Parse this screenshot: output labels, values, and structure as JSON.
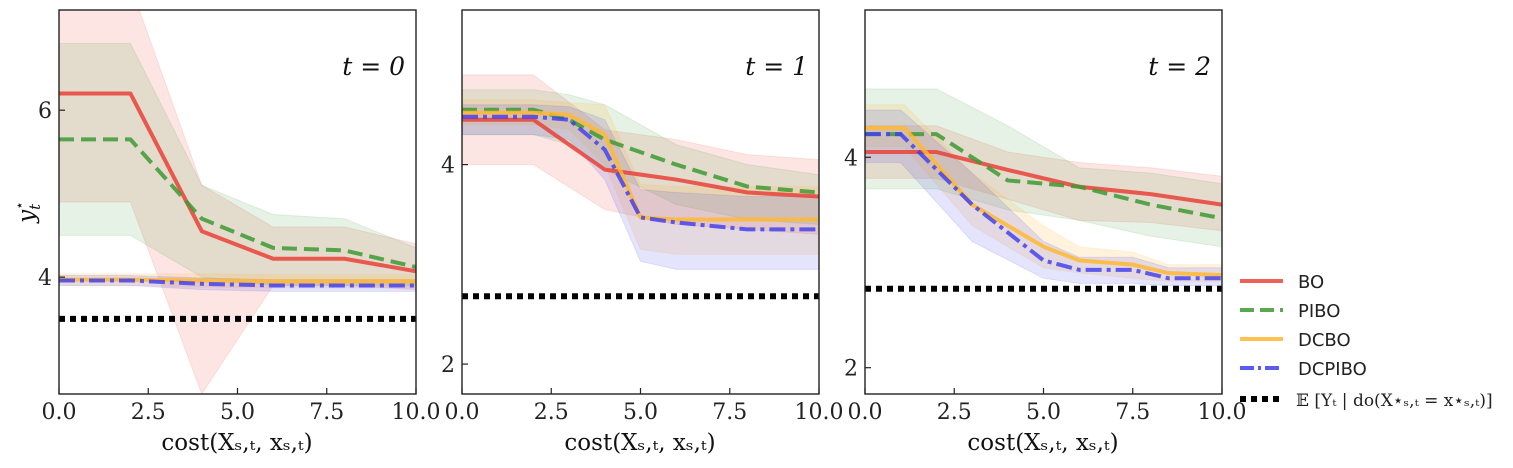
{
  "figure": {
    "ylabel_base": "y",
    "ylabel_sub": "t",
    "ylabel_sup": "⋆"
  },
  "colors": {
    "BO": "#e8463c",
    "PIBO": "#3d9a33",
    "DCBO": "#ffb732",
    "DCPIBO": "#3f3dee",
    "target": "#000000"
  },
  "legend": {
    "placement": "right",
    "entries": [
      {
        "name": "BO",
        "label": "BO",
        "style": "solid"
      },
      {
        "name": "PIBO",
        "label": "PIBO",
        "style": "dashed"
      },
      {
        "name": "DCBO",
        "label": "DCBO",
        "style": "solid"
      },
      {
        "name": "DCPIBO",
        "label": "DCPIBO",
        "style": "dashdot"
      },
      {
        "name": "target",
        "label": "𝔼 [Yₜ | do(X⋆ₛ,ₜ = x⋆ₛ,ₜ)]",
        "style": "dotted"
      }
    ]
  },
  "chart_data": [
    {
      "type": "line",
      "title": "t = 0",
      "xlabel": "cost(Xₛ,ₜ, xₛ,ₜ)",
      "ylabel": "yₜ⋆",
      "xlim": [
        0,
        10
      ],
      "ylim": [
        2.6,
        7.2
      ],
      "xticks": [
        0,
        2.5,
        5,
        7.5,
        10
      ],
      "xtick_labels": [
        "0.0",
        "2.5",
        "5.0",
        "7.5",
        "10.0"
      ],
      "yticks": [
        4,
        6
      ],
      "ytick_labels": [
        "4",
        "6"
      ],
      "grid": false,
      "target": 3.5,
      "series": [
        {
          "name": "BO",
          "x": [
            0,
            2,
            4,
            6,
            8,
            10
          ],
          "y": [
            6.2,
            6.2,
            4.55,
            4.22,
            4.22,
            4.07
          ],
          "lo": [
            4.9,
            4.9,
            2.6,
            3.9,
            3.9,
            3.85
          ],
          "hi": [
            7.5,
            7.5,
            5.1,
            4.6,
            4.6,
            4.4
          ]
        },
        {
          "name": "PIBO",
          "x": [
            0,
            2,
            4,
            6,
            8,
            10
          ],
          "y": [
            5.65,
            5.65,
            4.7,
            4.35,
            4.32,
            4.12
          ],
          "lo": [
            4.5,
            4.5,
            4.0,
            3.9,
            3.9,
            3.9
          ],
          "hi": [
            6.8,
            6.8,
            5.1,
            4.75,
            4.7,
            4.35
          ]
        },
        {
          "name": "DCBO",
          "x": [
            0,
            2,
            4,
            6,
            8,
            10
          ],
          "y": [
            3.97,
            3.97,
            3.96,
            3.95,
            3.95,
            3.95
          ],
          "lo": [
            3.9,
            3.9,
            3.88,
            3.87,
            3.87,
            3.87
          ],
          "hi": [
            4.04,
            4.04,
            4.04,
            4.03,
            4.03,
            4.03
          ]
        },
        {
          "name": "DCPIBO",
          "x": [
            0,
            2,
            4,
            6,
            8,
            10
          ],
          "y": [
            3.96,
            3.96,
            3.92,
            3.9,
            3.9,
            3.9
          ],
          "lo": [
            3.9,
            3.9,
            3.85,
            3.83,
            3.83,
            3.83
          ],
          "hi": [
            4.02,
            4.02,
            3.99,
            3.97,
            3.97,
            3.97
          ]
        }
      ]
    },
    {
      "type": "line",
      "title": "t = 1",
      "xlabel": "cost(Xₛ,ₜ, xₛ,ₜ)",
      "ylabel": "",
      "xlim": [
        0,
        10
      ],
      "ylim": [
        1.7,
        5.55
      ],
      "xticks": [
        0,
        2.5,
        5,
        7.5,
        10
      ],
      "xtick_labels": [
        "0.0",
        "2.5",
        "5.0",
        "7.5",
        "10.0"
      ],
      "yticks": [
        2,
        4
      ],
      "ytick_labels": [
        "2",
        "4"
      ],
      "grid": false,
      "target": 2.68,
      "series": [
        {
          "name": "BO",
          "x": [
            0,
            2,
            4,
            6,
            8,
            10
          ],
          "y": [
            4.45,
            4.45,
            3.95,
            3.85,
            3.72,
            3.68
          ],
          "lo": [
            4.0,
            4.0,
            3.55,
            3.4,
            3.35,
            3.3
          ],
          "hi": [
            4.9,
            4.9,
            4.35,
            4.25,
            4.1,
            4.05
          ]
        },
        {
          "name": "PIBO",
          "x": [
            0,
            2,
            3,
            4,
            6,
            8,
            10
          ],
          "y": [
            4.55,
            4.55,
            4.45,
            4.25,
            4.0,
            3.78,
            3.72
          ],
          "lo": [
            4.3,
            4.3,
            4.2,
            3.95,
            3.6,
            3.45,
            3.4
          ],
          "hi": [
            4.75,
            4.75,
            4.7,
            4.6,
            4.2,
            4.0,
            3.9
          ]
        },
        {
          "name": "DCBO",
          "x": [
            0,
            2,
            3,
            4,
            5,
            6,
            8,
            10
          ],
          "y": [
            4.52,
            4.52,
            4.5,
            4.3,
            3.47,
            3.45,
            3.45,
            3.45
          ],
          "lo": [
            4.4,
            4.4,
            4.35,
            4.0,
            3.15,
            3.1,
            3.1,
            3.1
          ],
          "hi": [
            4.65,
            4.65,
            4.62,
            4.6,
            3.8,
            3.78,
            3.78,
            3.78
          ]
        },
        {
          "name": "DCPIBO",
          "x": [
            0,
            2,
            3,
            4,
            5,
            6,
            8,
            10
          ],
          "y": [
            4.48,
            4.48,
            4.45,
            4.15,
            3.47,
            3.42,
            3.35,
            3.35
          ],
          "lo": [
            4.3,
            4.3,
            4.25,
            3.85,
            3.03,
            2.95,
            2.95,
            2.95
          ],
          "hi": [
            4.6,
            4.6,
            4.58,
            4.45,
            3.75,
            3.72,
            3.68,
            3.68
          ]
        }
      ]
    },
    {
      "type": "line",
      "title": "t = 2",
      "xlabel": "cost(Xₛ,ₜ, xₛ,ₜ)",
      "ylabel": "",
      "xlim": [
        0,
        10
      ],
      "ylim": [
        1.75,
        5.4
      ],
      "xticks": [
        0,
        2.5,
        5,
        7.5,
        10
      ],
      "xtick_labels": [
        "0.0",
        "2.5",
        "5.0",
        "7.5",
        "10.0"
      ],
      "yticks": [
        2,
        4
      ],
      "ytick_labels": [
        "2",
        "4"
      ],
      "grid": false,
      "target": 2.75,
      "series": [
        {
          "name": "BO",
          "x": [
            0,
            2,
            4,
            6,
            8,
            10
          ],
          "y": [
            4.05,
            4.05,
            3.88,
            3.72,
            3.65,
            3.55
          ],
          "lo": [
            3.8,
            3.8,
            3.6,
            3.4,
            3.38,
            3.3
          ],
          "hi": [
            4.3,
            4.3,
            4.05,
            3.95,
            3.9,
            3.82
          ]
        },
        {
          "name": "PIBO",
          "x": [
            0,
            2,
            4,
            6,
            8,
            10
          ],
          "y": [
            4.22,
            4.22,
            3.78,
            3.72,
            3.55,
            3.42
          ],
          "lo": [
            3.7,
            3.7,
            3.5,
            3.4,
            3.25,
            3.15
          ],
          "hi": [
            4.65,
            4.65,
            4.3,
            3.9,
            3.85,
            3.75
          ]
        },
        {
          "name": "DCBO",
          "x": [
            0,
            1.1,
            3,
            5,
            6,
            7.5,
            8.5,
            10
          ],
          "y": [
            4.28,
            4.28,
            3.55,
            3.15,
            3.02,
            2.98,
            2.9,
            2.88
          ],
          "lo": [
            4.1,
            4.1,
            3.35,
            2.95,
            2.9,
            2.85,
            2.82,
            2.82
          ],
          "hi": [
            4.5,
            4.5,
            3.85,
            3.35,
            3.15,
            3.1,
            2.98,
            2.98
          ]
        },
        {
          "name": "DCPIBO",
          "x": [
            0,
            1,
            3,
            5,
            6,
            7.5,
            8.5,
            10
          ],
          "y": [
            4.22,
            4.22,
            3.55,
            3.02,
            2.93,
            2.93,
            2.85,
            2.85
          ],
          "lo": [
            3.95,
            3.95,
            3.2,
            2.85,
            2.8,
            2.8,
            2.78,
            2.78
          ],
          "hi": [
            4.45,
            4.45,
            3.85,
            3.2,
            3.05,
            3.05,
            2.95,
            2.95
          ]
        }
      ]
    }
  ]
}
